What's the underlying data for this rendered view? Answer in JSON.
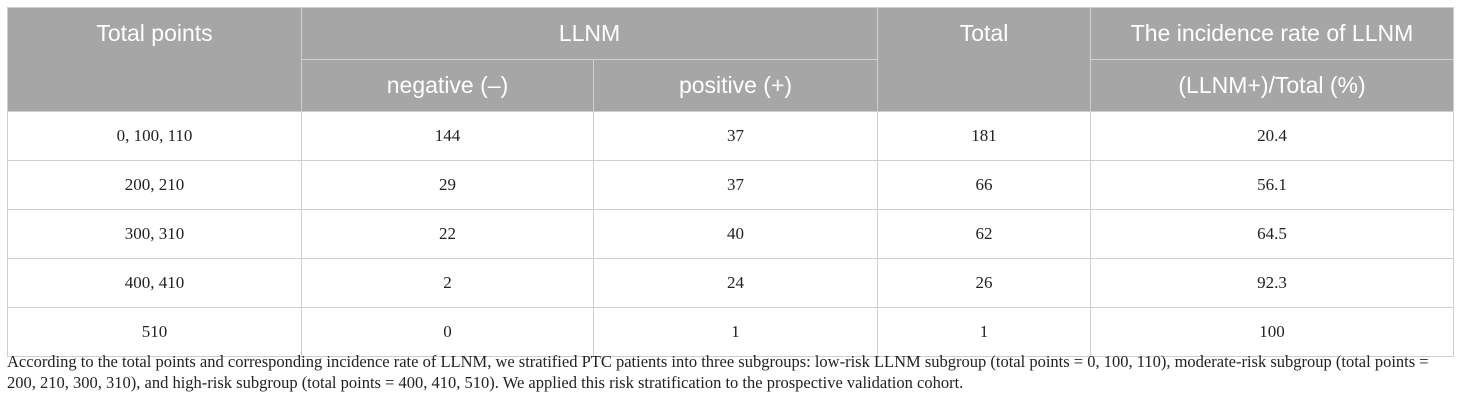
{
  "header": {
    "total_points": "Total points",
    "llnm": "LLNM",
    "negative": "negative (–)",
    "positive": "positive (+)",
    "total": "Total",
    "incidence_title": "The incidence rate of LLNM",
    "incidence_formula": "(LLNM+)/Total (%)"
  },
  "rows": [
    {
      "points": "0, 100, 110",
      "negative": "144",
      "positive": "37",
      "total": "181",
      "rate": "20.4"
    },
    {
      "points": "200, 210",
      "negative": "29",
      "positive": "37",
      "total": "66",
      "rate": "56.1"
    },
    {
      "points": "300, 310",
      "negative": "22",
      "positive": "40",
      "total": "62",
      "rate": "64.5"
    },
    {
      "points": "400, 410",
      "negative": "2",
      "positive": "24",
      "total": "26",
      "rate": "92.3"
    },
    {
      "points": "510",
      "negative": "0",
      "positive": "1",
      "total": "1",
      "rate": "100"
    }
  ],
  "caption": "According to the total points and corresponding incidence rate of LLNM, we stratified PTC patients into three subgroups: low-risk LLNM subgroup (total points = 0, 100, 110), moderate-risk subgroup (total points = 200, 210, 300, 310), and high-risk subgroup (total points = 400, 410, 510). We applied this risk stratification to the prospective validation cohort.",
  "colors": {
    "header_bg": "#a6a6a6",
    "header_text": "#ffffff",
    "border": "#cfcfcf",
    "body_text": "#222222"
  }
}
